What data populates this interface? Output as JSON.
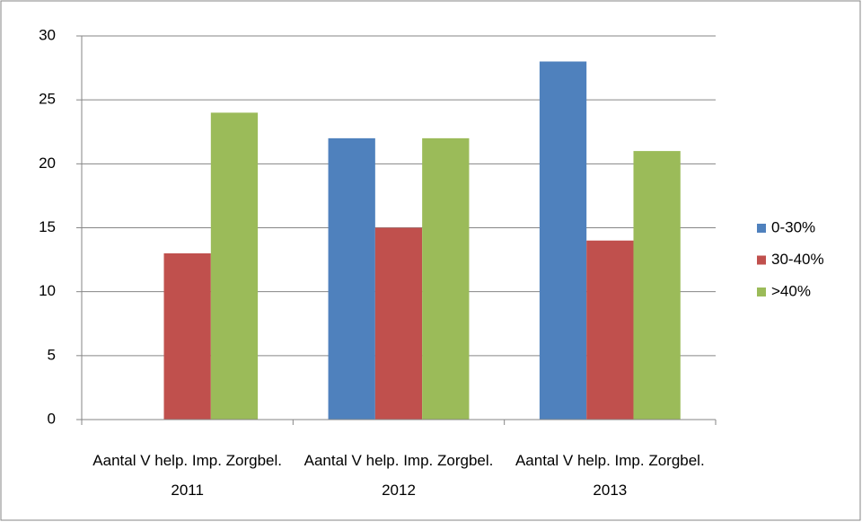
{
  "chart_data": {
    "type": "bar",
    "categories": [
      "Aantal V help. Imp. Zorgbel. 2011",
      "Aantal V help. Imp. Zorgbel. 2012",
      "Aantal V help. Imp. Zorgbel. 2013"
    ],
    "series": [
      {
        "name": "0-30%",
        "color": "#4f81bd",
        "values": [
          0,
          22,
          28
        ]
      },
      {
        "name": "30-40%",
        "color": "#c0504d",
        "values": [
          13,
          15,
          14
        ]
      },
      {
        "name": ">40%",
        "color": "#9bbb59",
        "values": [
          24,
          22,
          21
        ]
      }
    ],
    "ylim": [
      0,
      30
    ],
    "yticks": [
      0,
      5,
      10,
      15,
      20,
      25,
      30
    ],
    "grid": true,
    "legend": "right"
  }
}
